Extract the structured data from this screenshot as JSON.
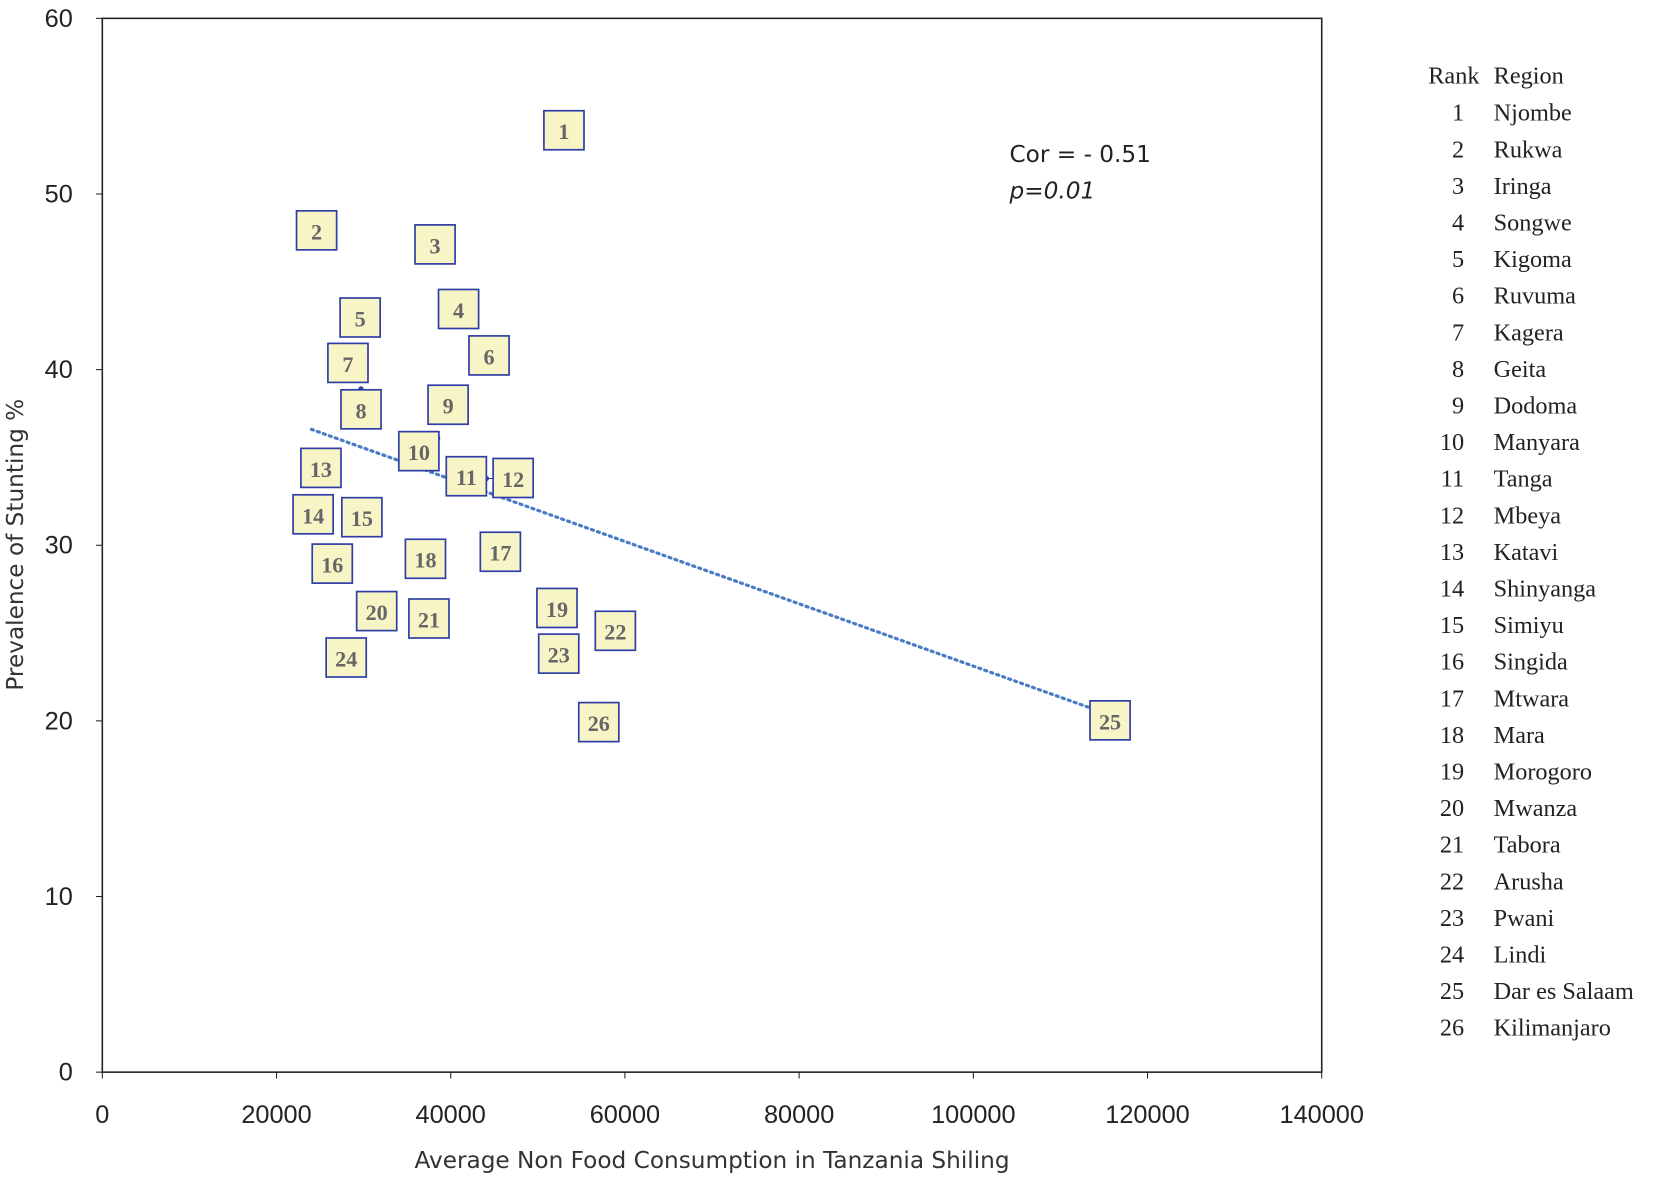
{
  "chart_data": {
    "type": "scatter",
    "title": "",
    "xlabel": "Average Non Food Consumption in Tanzania Shiling",
    "ylabel": "Prevalence of Stunting %",
    "xlim": [
      0,
      140000
    ],
    "ylim": [
      0,
      60
    ],
    "xticks": [
      "0",
      "20000",
      "40000",
      "60000",
      "80000",
      "100000",
      "120000",
      "140000"
    ],
    "yticks": [
      "0",
      "10",
      "20",
      "30",
      "40",
      "50",
      "60"
    ],
    "grid": false,
    "annotation": {
      "cor": "Cor = - 0.51",
      "p": "p=0.01"
    },
    "trendline": {
      "x": [
        24000,
        114200
      ],
      "y": [
        36.6,
        20.6
      ],
      "style": "dotted",
      "color": "#4a7cc4"
    },
    "points": [
      {
        "rank": "1",
        "x": 53000,
        "y": 53.6
      },
      {
        "rank": "2",
        "x": 24600,
        "y": 47.9
      },
      {
        "rank": "3",
        "x": 38200,
        "y": 47.1
      },
      {
        "rank": "4",
        "x": 40900,
        "y": 43.2
      },
      {
        "rank": "5",
        "x": 29600,
        "y": 42.3
      },
      {
        "rank": "6",
        "x": 44400,
        "y": 41.0
      },
      {
        "rank": "7",
        "x": 28200,
        "y": 39.8
      },
      {
        "rank": "8",
        "x": 29700,
        "y": 38.9
      },
      {
        "rank": "9",
        "x": 39700,
        "y": 37.2
      },
      {
        "rank": "10",
        "x": 38500,
        "y": 36.1
      },
      {
        "rank": "11",
        "x": 42700,
        "y": 33.9
      },
      {
        "rank": "12",
        "x": 44100,
        "y": 33.8
      },
      {
        "rank": "13",
        "x": 25100,
        "y": 33.7
      },
      {
        "rank": "14",
        "x": 24200,
        "y": 32.0
      },
      {
        "rank": "15",
        "x": 29800,
        "y": 31.2
      },
      {
        "rank": "16",
        "x": 26400,
        "y": 29.7
      },
      {
        "rank": "17",
        "x": 45700,
        "y": 29.6
      },
      {
        "rank": "18",
        "x": 37100,
        "y": 29.2
      },
      {
        "rank": "19",
        "x": 52200,
        "y": 26.4
      },
      {
        "rank": "20",
        "x": 31500,
        "y": 26.1
      },
      {
        "rank": "21",
        "x": 37500,
        "y": 25.8
      },
      {
        "rank": "22",
        "x": 58900,
        "y": 25.1
      },
      {
        "rank": "23",
        "x": 52400,
        "y": 23.8
      },
      {
        "rank": "24",
        "x": 28000,
        "y": 23.7
      },
      {
        "rank": "25",
        "x": 115700,
        "y": 20.0
      },
      {
        "rank": "26",
        "x": 57000,
        "y": 19.9
      }
    ],
    "legend": {
      "header_rank": "Rank",
      "header_region": "Region",
      "placement": "right",
      "entries": [
        {
          "rank": "1",
          "region": "Njombe"
        },
        {
          "rank": "2",
          "region": "Rukwa"
        },
        {
          "rank": "3",
          "region": "Iringa"
        },
        {
          "rank": "4",
          "region": "Songwe"
        },
        {
          "rank": "5",
          "region": "Kigoma"
        },
        {
          "rank": "6",
          "region": "Ruvuma"
        },
        {
          "rank": "7",
          "region": "Kagera"
        },
        {
          "rank": "8",
          "region": "Geita"
        },
        {
          "rank": "9",
          "region": "Dodoma"
        },
        {
          "rank": "10",
          "region": "Manyara"
        },
        {
          "rank": "11",
          "region": "Tanga"
        },
        {
          "rank": "12",
          "region": "Mbeya"
        },
        {
          "rank": "13",
          "region": "Katavi"
        },
        {
          "rank": "14",
          "region": "Shinyanga"
        },
        {
          "rank": "15",
          "region": "Simiyu"
        },
        {
          "rank": "16",
          "region": "Singida"
        },
        {
          "rank": "17",
          "region": "Mtwara"
        },
        {
          "rank": "18",
          "region": "Mara"
        },
        {
          "rank": "19",
          "region": "Morogoro"
        },
        {
          "rank": "20",
          "region": "Mwanza"
        },
        {
          "rank": "21",
          "region": "Tabora"
        },
        {
          "rank": "22",
          "region": "Arusha"
        },
        {
          "rank": "23",
          "region": "Pwani"
        },
        {
          "rank": "24",
          "region": "Lindi"
        },
        {
          "rank": "25",
          "region": "Dar es Salaam"
        },
        {
          "rank": "26",
          "region": "Kilimanjaro"
        }
      ]
    },
    "colors": {
      "box_fill": "#f7f4c6",
      "box_stroke": "#2f3da6",
      "label": "#666666"
    }
  }
}
